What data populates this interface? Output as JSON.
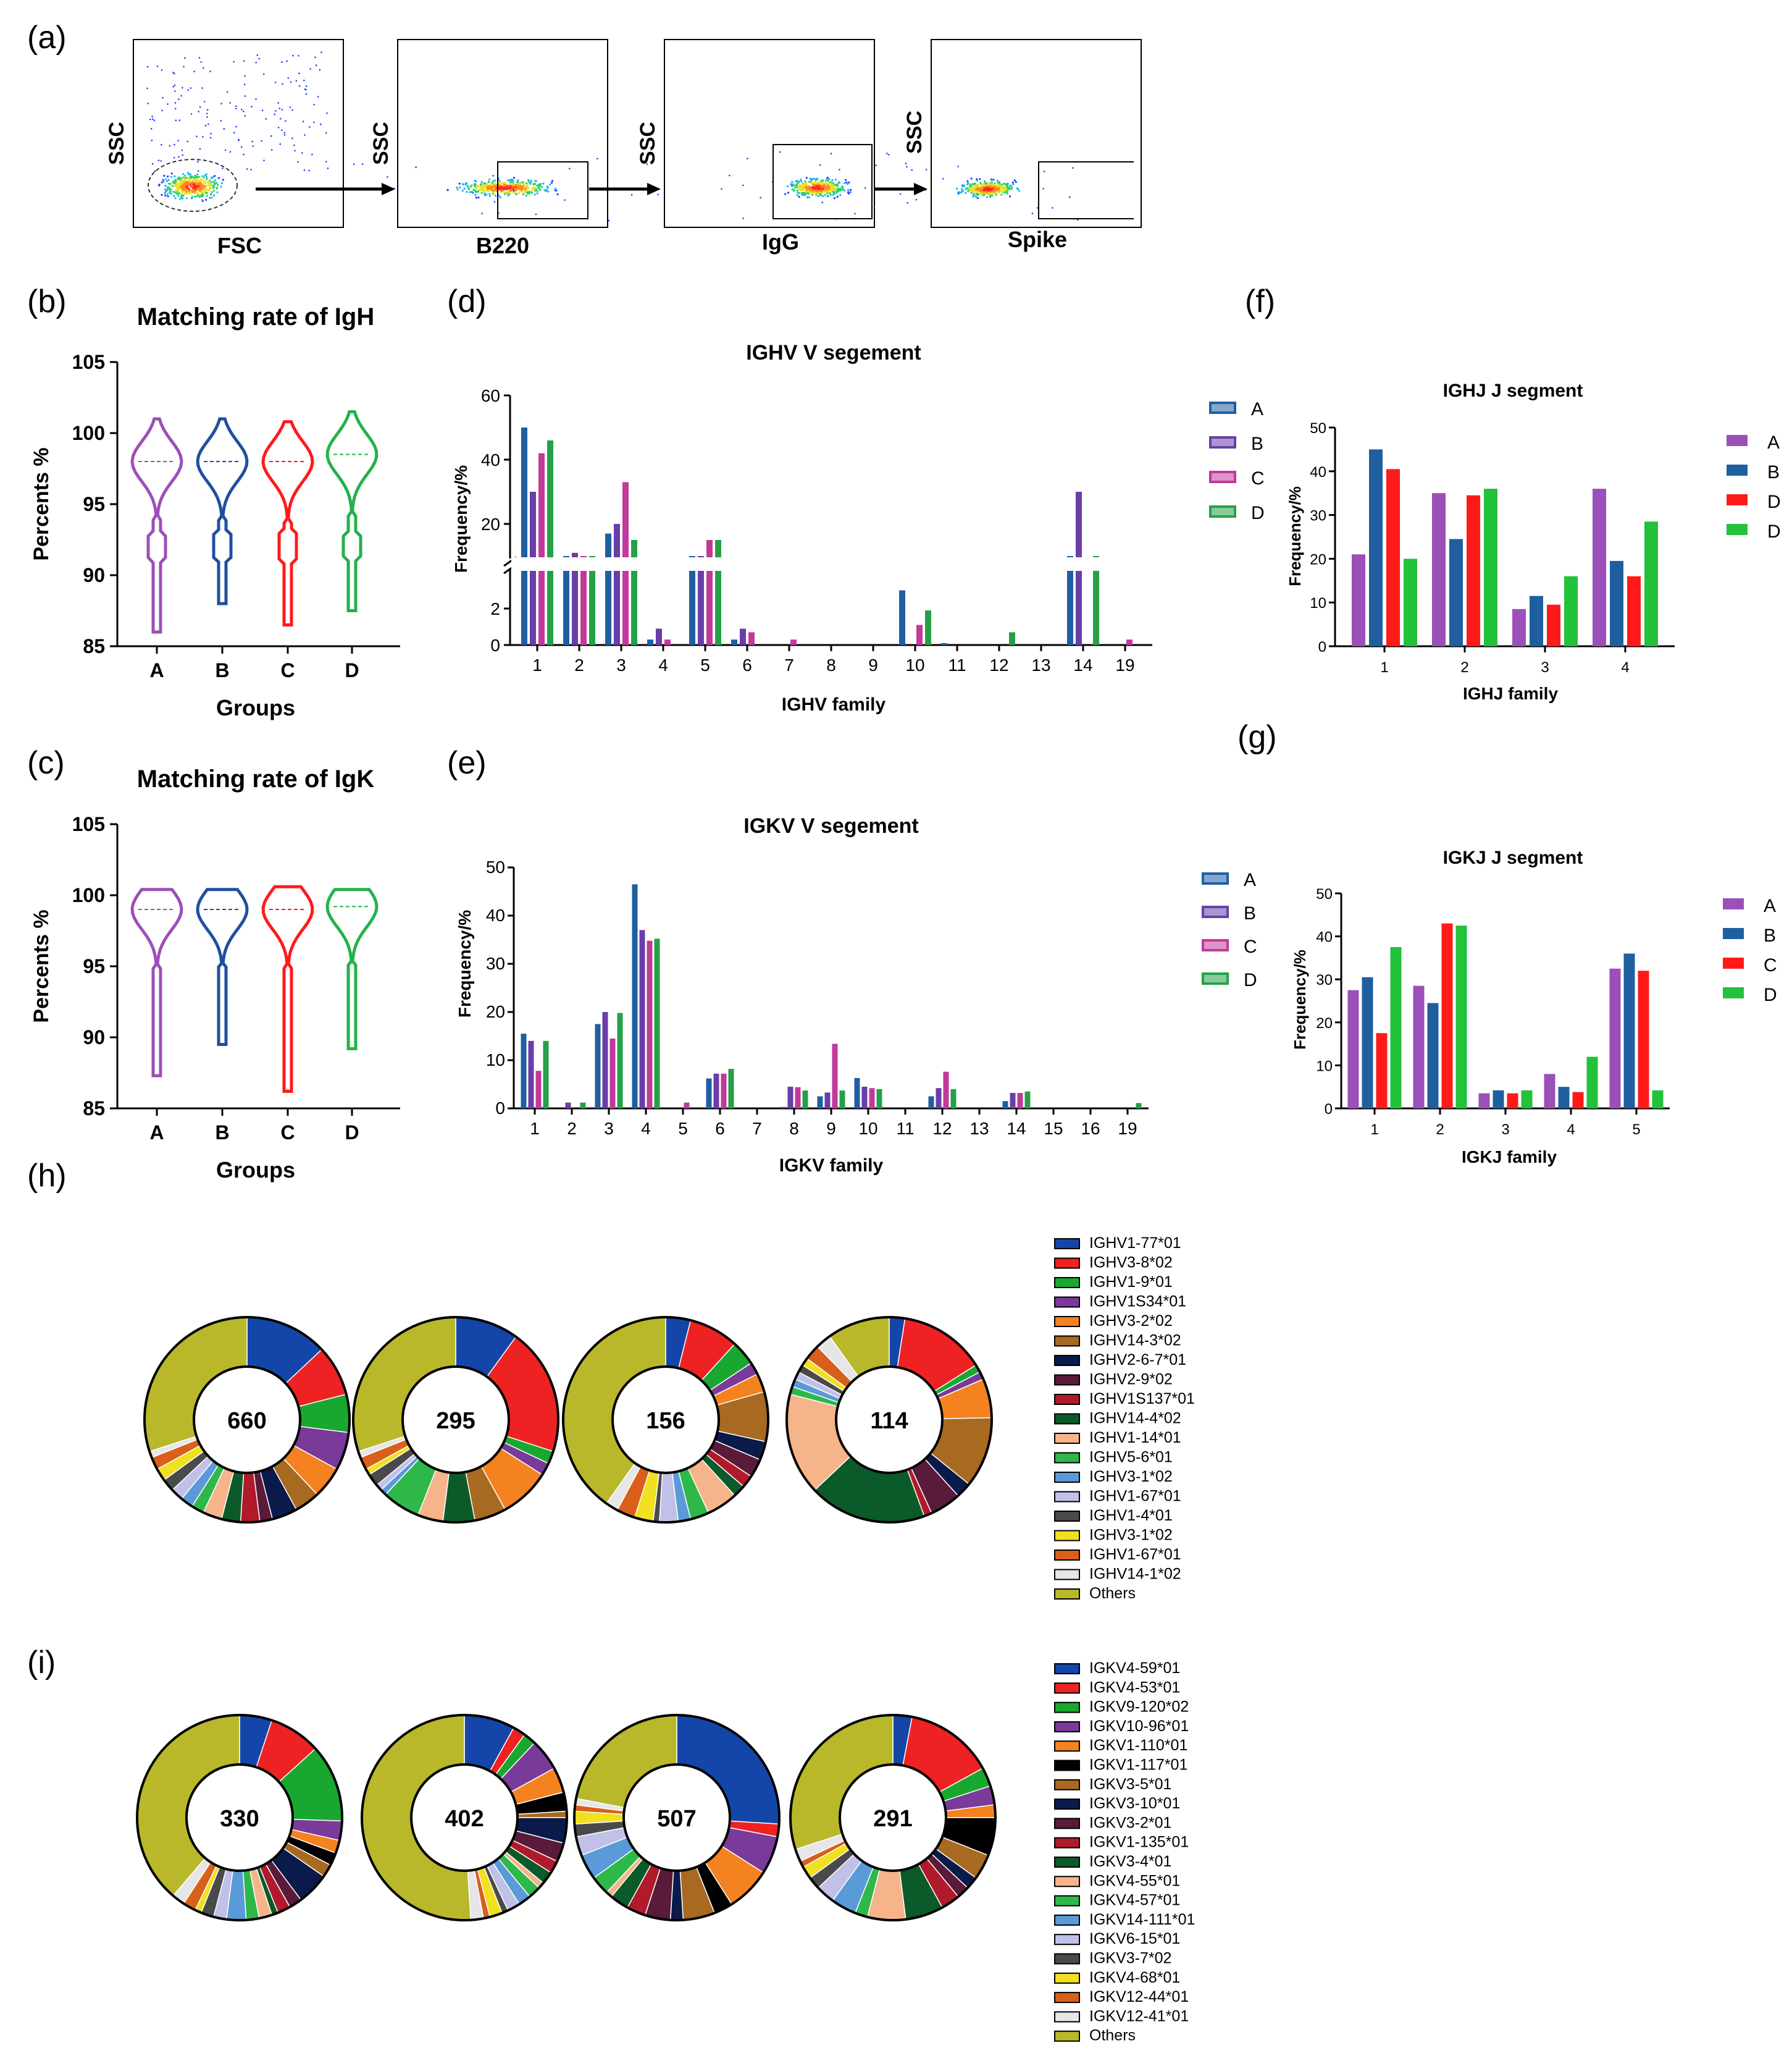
{
  "panel_labels": [
    "(a)",
    "(b)",
    "(c)",
    "(d)",
    "(e)",
    "(f)",
    "(g)",
    "(h)",
    "(i)"
  ],
  "flow": {
    "y_label": "SSC",
    "x_labels": [
      "FSC",
      "B220",
      "IgG",
      "Spike"
    ]
  },
  "chart_data": [
    {
      "id": "b",
      "type": "violin",
      "title": "Matching rate of IgH",
      "xlabel": "Groups",
      "ylabel": "Percents %",
      "categories": [
        "A",
        "B",
        "C",
        "D"
      ],
      "ylim": [
        85,
        105
      ],
      "yticks": [
        85,
        90,
        95,
        100,
        105
      ],
      "colors": [
        "#9b4fb8",
        "#1f4fa0",
        "#ff1a1a",
        "#22b24a"
      ],
      "series": [
        {
          "min": 86,
          "max": 101,
          "median": 98
        },
        {
          "min": 88,
          "max": 101,
          "median": 98
        },
        {
          "min": 86.5,
          "max": 100.8,
          "median": 98
        },
        {
          "min": 87.5,
          "max": 101.5,
          "median": 98.5
        }
      ]
    },
    {
      "id": "c",
      "type": "violin",
      "title": "Matching rate of IgK",
      "xlabel": "Groups",
      "ylabel": "Percents %",
      "categories": [
        "A",
        "B",
        "C",
        "D"
      ],
      "ylim": [
        85,
        105
      ],
      "yticks": [
        85,
        90,
        95,
        100,
        105
      ],
      "colors": [
        "#9b4fb8",
        "#1f4fa0",
        "#ff1a1a",
        "#22b24a"
      ],
      "series": [
        {
          "min": 87.3,
          "max": 100.4,
          "median": 99
        },
        {
          "min": 89.5,
          "max": 100.4,
          "median": 99
        },
        {
          "min": 86.2,
          "max": 100.6,
          "median": 99
        },
        {
          "min": 89.2,
          "max": 100.4,
          "median": 99.2
        }
      ]
    },
    {
      "id": "d",
      "type": "bar",
      "title": "IGHV V segement",
      "xlabel": "IGHV family",
      "ylabel": "Frequency/%",
      "axis_break": true,
      "lower_ylim": [
        0,
        4
      ],
      "lower_yticks": [
        0,
        2
      ],
      "upper_ylim": [
        10,
        60
      ],
      "upper_yticks": [
        20,
        40,
        60
      ],
      "categories": [
        "1",
        "2",
        "3",
        "4",
        "5",
        "6",
        "7",
        "8",
        "9",
        "10",
        "11",
        "12",
        "13",
        "14",
        "19"
      ],
      "legend": [
        "A",
        "B",
        "C",
        "D"
      ],
      "colors": [
        "#1f5fa0",
        "#6a3ea8",
        "#c2399a",
        "#26a046"
      ],
      "series": [
        {
          "name": "A",
          "values": [
            50,
            9,
            17,
            0.3,
            7,
            0.3,
            0,
            0,
            0,
            3,
            0.1,
            0,
            0,
            8,
            0
          ]
        },
        {
          "name": "B",
          "values": [
            30,
            11,
            20,
            0.9,
            5,
            0.9,
            0,
            0,
            0,
            0,
            0,
            0,
            0,
            30,
            0
          ]
        },
        {
          "name": "C",
          "values": [
            42,
            6,
            33,
            0.3,
            15,
            0.7,
            0.3,
            0,
            0,
            1.1,
            0,
            0,
            0,
            0,
            0.3
          ]
        },
        {
          "name": "D",
          "values": [
            46,
            9,
            15,
            0,
            15,
            0,
            0,
            0,
            0,
            1.9,
            0,
            0.7,
            0,
            10,
            0
          ]
        }
      ]
    },
    {
      "id": "e",
      "type": "bar",
      "title": "IGKV V segement",
      "xlabel": "IGKV family",
      "ylabel": "Frequency/%",
      "ylim": [
        0,
        50
      ],
      "yticks": [
        0,
        10,
        20,
        30,
        40,
        50
      ],
      "categories": [
        "1",
        "2",
        "3",
        "4",
        "5",
        "6",
        "7",
        "8",
        "9",
        "10",
        "11",
        "12",
        "13",
        "14",
        "15",
        "16",
        "19"
      ],
      "legend": [
        "A",
        "B",
        "C",
        "D"
      ],
      "colors": [
        "#1f5fa0",
        "#6a3ea8",
        "#c2399a",
        "#26a046"
      ],
      "series": [
        {
          "name": "A",
          "values": [
            15.5,
            0,
            17.5,
            46.5,
            0,
            6.2,
            0,
            0.3,
            2.5,
            6.3,
            0,
            2.5,
            0,
            1.5,
            0,
            0,
            0
          ]
        },
        {
          "name": "B",
          "values": [
            14,
            1.2,
            20,
            37,
            0,
            7.2,
            0,
            4.5,
            3.3,
            4.5,
            0,
            4.2,
            0,
            3.2,
            0,
            0,
            0
          ]
        },
        {
          "name": "C",
          "values": [
            7.8,
            0,
            14.5,
            34.8,
            1.2,
            7.2,
            0,
            4.4,
            13.4,
            4.2,
            0,
            7.6,
            0,
            3.2,
            0,
            0,
            0
          ]
        },
        {
          "name": "D",
          "values": [
            14,
            1.2,
            19.8,
            35.2,
            0,
            8.2,
            0,
            3.7,
            3.7,
            4,
            0,
            4,
            0,
            3.5,
            0,
            0,
            1.1
          ]
        }
      ]
    },
    {
      "id": "f",
      "type": "bar",
      "title": "IGHJ J segment",
      "xlabel": "IGHJ family",
      "ylabel": "Frequency/%",
      "ylim": [
        0,
        50
      ],
      "yticks": [
        0,
        10,
        20,
        30,
        40,
        50
      ],
      "categories": [
        "1",
        "2",
        "3",
        "4"
      ],
      "legend": [
        "A",
        "B",
        "D",
        "D"
      ],
      "colors": [
        "#9b4fb8",
        "#1f5fa0",
        "#ff1a1a",
        "#22c23a"
      ],
      "series": [
        {
          "name": "A",
          "values": [
            21,
            35,
            8.5,
            36
          ]
        },
        {
          "name": "B",
          "values": [
            45,
            24.5,
            11.5,
            19.5
          ]
        },
        {
          "name": "D",
          "values": [
            40.5,
            34.5,
            9.5,
            16
          ]
        },
        {
          "name": "D",
          "values": [
            20,
            36,
            16,
            28.5
          ]
        }
      ]
    },
    {
      "id": "g",
      "type": "bar",
      "title": "IGKJ J segment",
      "xlabel": "IGKJ family",
      "ylabel": "Frequency/%",
      "ylim": [
        0,
        50
      ],
      "yticks": [
        0,
        10,
        20,
        30,
        40,
        50
      ],
      "categories": [
        "1",
        "2",
        "3",
        "4",
        "5"
      ],
      "legend": [
        "A",
        "B",
        "C",
        "D"
      ],
      "colors": [
        "#9b4fb8",
        "#1f5fa0",
        "#ff1a1a",
        "#22c23a"
      ],
      "series": [
        {
          "name": "A",
          "values": [
            27.5,
            28.5,
            3.5,
            8,
            32.5
          ]
        },
        {
          "name": "B",
          "values": [
            30.5,
            24.5,
            4.2,
            5,
            36
          ]
        },
        {
          "name": "C",
          "values": [
            17.5,
            43,
            3.5,
            3.8,
            32
          ]
        },
        {
          "name": "D",
          "values": [
            37.5,
            42.5,
            4.2,
            12,
            4.2
          ]
        }
      ]
    },
    {
      "id": "h",
      "type": "pie",
      "counts": [
        "660",
        "295",
        "156",
        "114"
      ],
      "legend": [
        "IGHV1-77*01",
        "IGHV3-8*02",
        "IGHV1-9*01",
        "IGHV1S34*01",
        "IGHV3-2*02",
        "IGHV14-3*02",
        "IGHV2-6-7*01",
        "IGHV2-9*02",
        "IGHV1S137*01",
        "IGHV14-4*02",
        "IGHV1-14*01",
        "IGHV5-6*01",
        "IGHV3-1*02",
        "IGHV1-67*01",
        "IGHV1-4*01",
        "IGHV3-1*02",
        "IGHV1-67*01",
        "IGHV14-1*02",
        "Others"
      ],
      "colors": [
        "#1346a8",
        "#ee2222",
        "#18a830",
        "#7a3a9a",
        "#f58220",
        "#a86a20",
        "#0a1a4a",
        "#5a1a3a",
        "#b01a2a",
        "#0a5a2a",
        "#f6b48a",
        "#2eb84a",
        "#5a9ad8",
        "#c0c0e8",
        "#4a4a4a",
        "#f0e020",
        "#d8601a",
        "#e6e6e6",
        "#b8b82a"
      ],
      "pies": [
        [
          13,
          8,
          6,
          6,
          5,
          4,
          4,
          2,
          3,
          3,
          3,
          2,
          2,
          2,
          2,
          2,
          2,
          1,
          30
        ],
        [
          10,
          20,
          2,
          2,
          8,
          5,
          0,
          0,
          0,
          5,
          4,
          6,
          1,
          1,
          2,
          1,
          2,
          1,
          30
        ],
        [
          4,
          8,
          4,
          2,
          3,
          8,
          3,
          3,
          2,
          2,
          5,
          3,
          2,
          3,
          1,
          3,
          3,
          2,
          41
        ],
        [
          2,
          11,
          1,
          1,
          5,
          9,
          2,
          4,
          1,
          15,
          13,
          1,
          1,
          1,
          1,
          1,
          2,
          2,
          8
        ]
      ]
    },
    {
      "id": "i",
      "type": "pie",
      "counts": [
        "330",
        "402",
        "507",
        "291"
      ],
      "legend": [
        "IGKV4-59*01",
        "IGKV4-53*01",
        "IGKV9-120*02",
        "IGKV10-96*01",
        "IGKV1-110*01",
        "IGKV1-117*01",
        "IGKV3-5*01",
        "IGKV3-10*01",
        "IGKV3-2*01",
        "IGKV1-135*01",
        "IGKV3-4*01",
        "IGKV4-55*01",
        "IGKV4-57*01",
        "IGKV14-111*01",
        "IGKV6-15*01",
        "IGKV3-7*02",
        "IGKV4-68*01",
        "IGKV12-44*01",
        "IGKV12-41*01",
        "Others"
      ],
      "colors": [
        "#1346a8",
        "#ee2222",
        "#18a830",
        "#7a3a9a",
        "#f58220",
        "#000000",
        "#a86a20",
        "#0a1a4a",
        "#5a1a3a",
        "#b01a2a",
        "#0a5a2a",
        "#f6b48a",
        "#2eb84a",
        "#5a9ad8",
        "#c0c0e8",
        "#4a4a4a",
        "#f0e020",
        "#d8601a",
        "#e6e6e6",
        "#b8b82a"
      ],
      "pies": [
        [
          5,
          8,
          12,
          3,
          2,
          2,
          2,
          5,
          2,
          2,
          1,
          2,
          2,
          3,
          2,
          2,
          1,
          2,
          2,
          38
        ],
        [
          8,
          2,
          2,
          5,
          4,
          3,
          1,
          4,
          3,
          2,
          2,
          1,
          2,
          2,
          2,
          1,
          2,
          1,
          2,
          51
        ],
        [
          26,
          2,
          0,
          6,
          7,
          3,
          5,
          2,
          4,
          3,
          3,
          1,
          3,
          4,
          3,
          2,
          2,
          1,
          1,
          22
        ],
        [
          3,
          14,
          3,
          3,
          2,
          6,
          4,
          2,
          2,
          3,
          6,
          6,
          2,
          4,
          3,
          2,
          2,
          1,
          2,
          30
        ]
      ]
    }
  ]
}
